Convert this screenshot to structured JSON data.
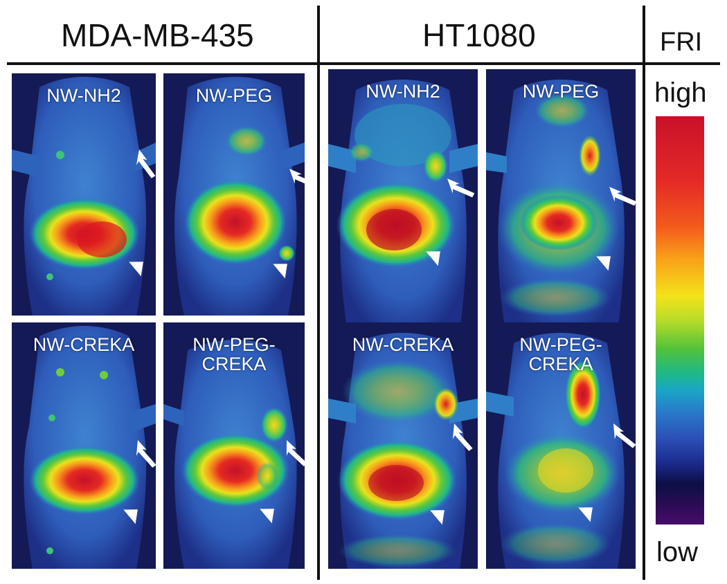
{
  "headers": {
    "left": "MDA-MB-435",
    "middle": "HT1080",
    "right": "FRI"
  },
  "panels": {
    "mda_nh2": "NW-NH2",
    "mda_peg": "NW-PEG",
    "mda_creka": "NW-CREKA",
    "mda_peg_creka": "NW-PEG-\nCREKA",
    "ht_nh2": "NW-NH2",
    "ht_peg": "NW-PEG",
    "ht_creka": "NW-CREKA",
    "ht_peg_creka": "NW-PEG-\nCREKA"
  },
  "colorbar": {
    "high_label": "high",
    "low_label": "low"
  }
}
